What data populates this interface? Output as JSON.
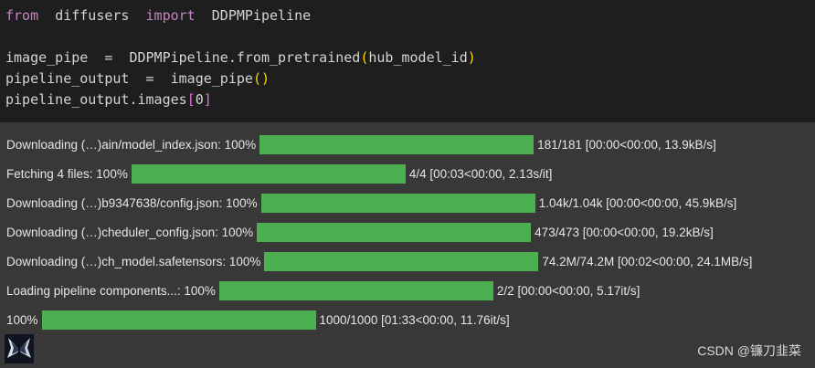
{
  "code": {
    "line1": {
      "kw1": "from",
      "mod": "diffusers",
      "kw2": "import",
      "cls": "DDPMPipeline"
    },
    "line3": {
      "lhs": "image_pipe",
      "eq": "=",
      "call": "DDPMPipeline.from_pretrained",
      "open": "(",
      "arg": "hub_model_id",
      "close": ")"
    },
    "line4": {
      "lhs": "pipeline_output",
      "eq": "=",
      "call": "image_pipe",
      "parens": "()"
    },
    "line5": {
      "obj": "pipeline_output.images",
      "open": "[",
      "idx": "0",
      "close": "]"
    }
  },
  "progress": [
    {
      "label": "Downloading (…)ain/model_index.json: 100%",
      "value": 1.0,
      "stats": "181/181 [00:00<00:00, 13.9kB/s]"
    },
    {
      "label": "Fetching 4 files: 100%",
      "value": 1.0,
      "stats": "4/4 [00:03<00:00, 2.13s/it]"
    },
    {
      "label": "Downloading (…)b9347638/config.json: 100%",
      "value": 1.0,
      "stats": "1.04k/1.04k [00:00<00:00, 45.9kB/s]"
    },
    {
      "label": "Downloading (…)cheduler_config.json: 100%",
      "value": 1.0,
      "stats": "473/473 [00:00<00:00, 19.2kB/s]"
    },
    {
      "label": "Downloading (…)ch_model.safetensors: 100%",
      "value": 1.0,
      "stats": "74.2M/74.2M [00:02<00:00, 24.1MB/s]"
    },
    {
      "label": "Loading pipeline components...: 100%",
      "value": 1.0,
      "stats": "2/2 [00:00<00:00, 5.17it/s]"
    },
    {
      "label": "100%",
      "value": 1.0,
      "stats": "1000/1000 [01:33<00:00, 11.76it/s]"
    }
  ],
  "watermark": "CSDN @镰刀韭菜",
  "colors": {
    "bar": "#4caf50",
    "keyword": "#c586c0",
    "paren": "#ffd700"
  }
}
